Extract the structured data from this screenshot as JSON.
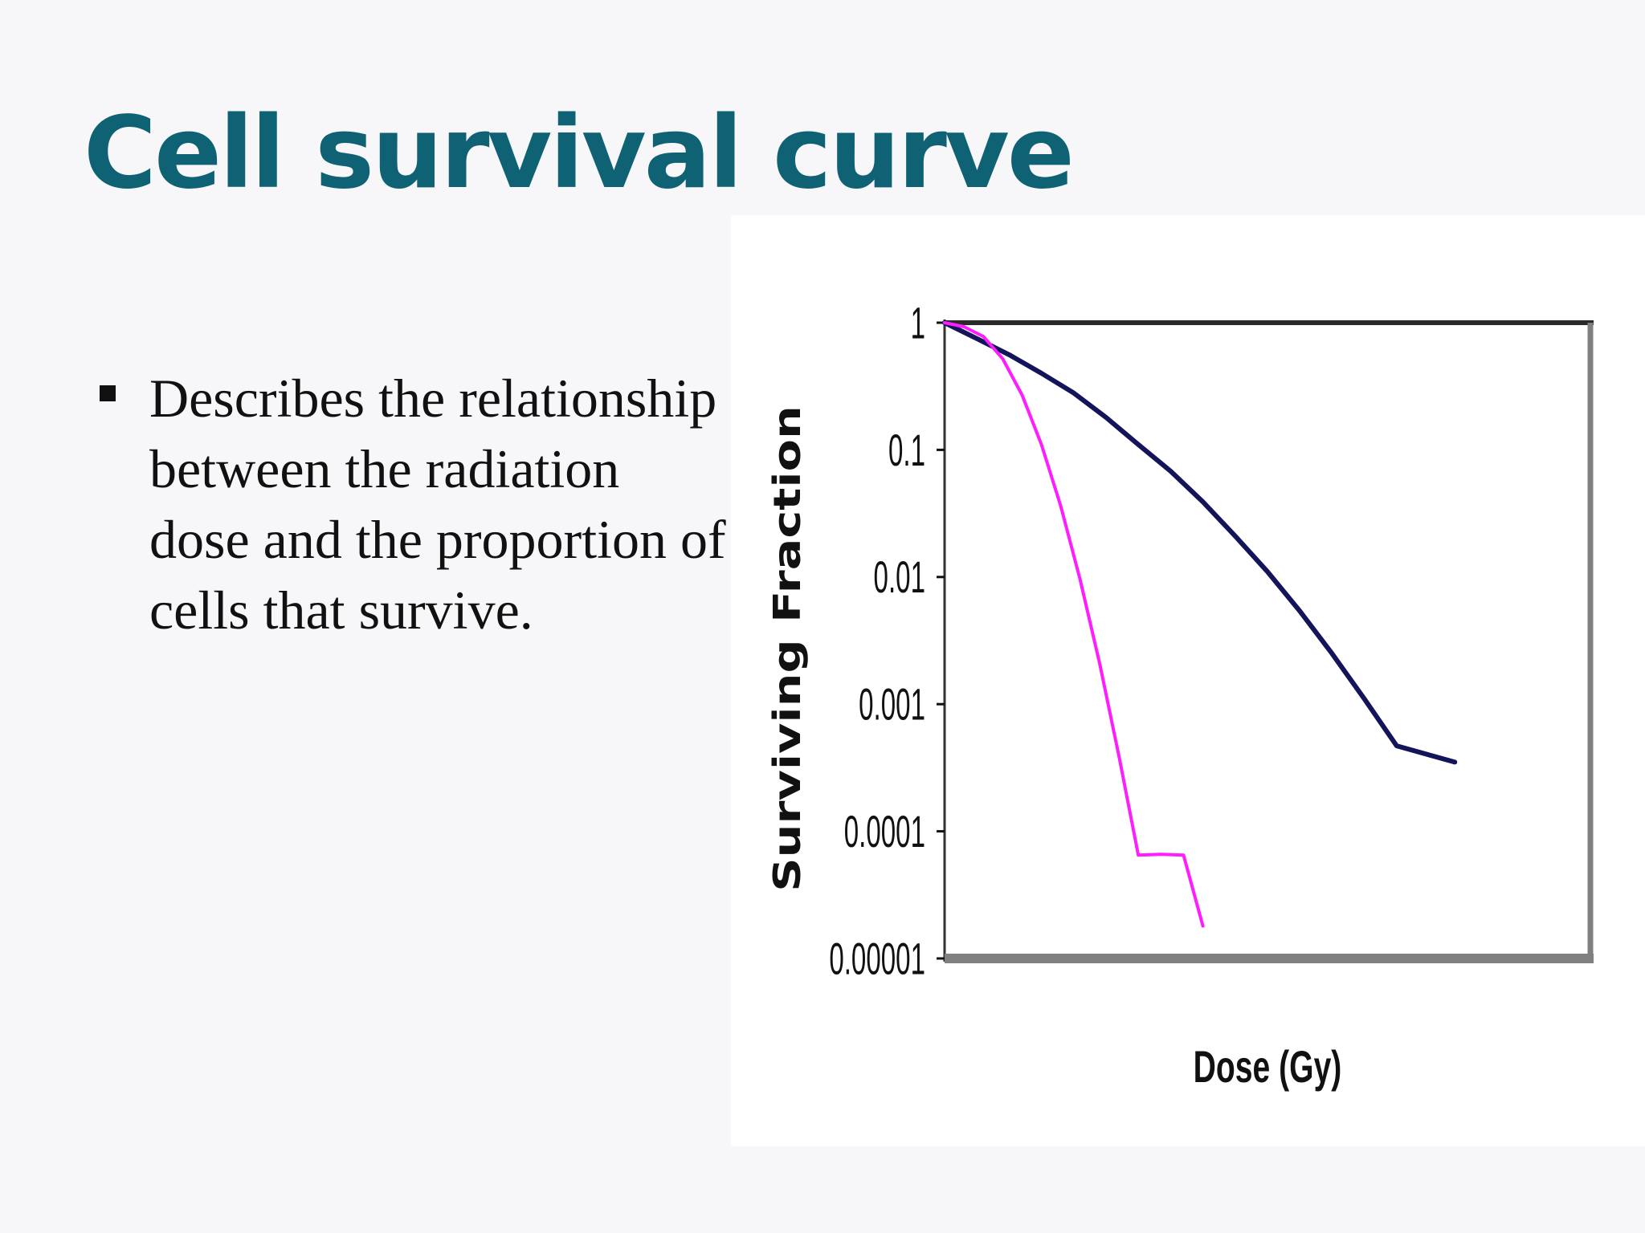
{
  "slide": {
    "title": "Cell survival curve",
    "bullets": [
      "Describes the relationship between the radiation dose and the proportion of cells that survive."
    ]
  },
  "colors": {
    "title": "#0e6274",
    "series_1": "#14145a",
    "series_2": "#ff1cff",
    "plot_frame": "#808080"
  },
  "chart_data": {
    "type": "line",
    "title": "",
    "xlabel": "Dose (Gy)",
    "ylabel": "Surviving Fraction",
    "yscale": "log",
    "ylim": [
      1e-05,
      1
    ],
    "xlim": [
      0,
      10
    ],
    "xticks_shown": false,
    "yticks": [
      1,
      0.1,
      0.01,
      0.001,
      0.0001,
      1e-05
    ],
    "ytick_labels": [
      "1",
      "0.1",
      "0.01",
      "0.001",
      "0.0001",
      "0.00001"
    ],
    "grid": false,
    "legend": "none",
    "series": [
      {
        "color": "#14145a",
        "points": [
          [
            0,
            1
          ],
          [
            0.5,
            0.75
          ],
          [
            1,
            0.56
          ],
          [
            1.5,
            0.4
          ],
          [
            2,
            0.28
          ],
          [
            2.5,
            0.18
          ],
          [
            3,
            0.11
          ],
          [
            3.5,
            0.068
          ],
          [
            4,
            0.039
          ],
          [
            4.5,
            0.021
          ],
          [
            5,
            0.011
          ],
          [
            5.5,
            0.0054
          ],
          [
            6,
            0.0025
          ],
          [
            6.5,
            0.0011
          ],
          [
            7,
            0.00047
          ],
          [
            7.9,
            0.00035
          ]
        ]
      },
      {
        "color": "#ff1cff",
        "points": [
          [
            0,
            1
          ],
          [
            0.3,
            0.93
          ],
          [
            0.6,
            0.78
          ],
          [
            0.9,
            0.52
          ],
          [
            1.2,
            0.27
          ],
          [
            1.5,
            0.11
          ],
          [
            1.8,
            0.036
          ],
          [
            2.1,
            0.0095
          ],
          [
            2.4,
            0.0021
          ],
          [
            2.7,
            0.00039
          ],
          [
            3,
            6.5e-05
          ],
          [
            3.35,
            6.6e-05
          ],
          [
            3.7,
            6.5e-05
          ],
          [
            4,
            1.8e-05
          ]
        ]
      }
    ]
  }
}
